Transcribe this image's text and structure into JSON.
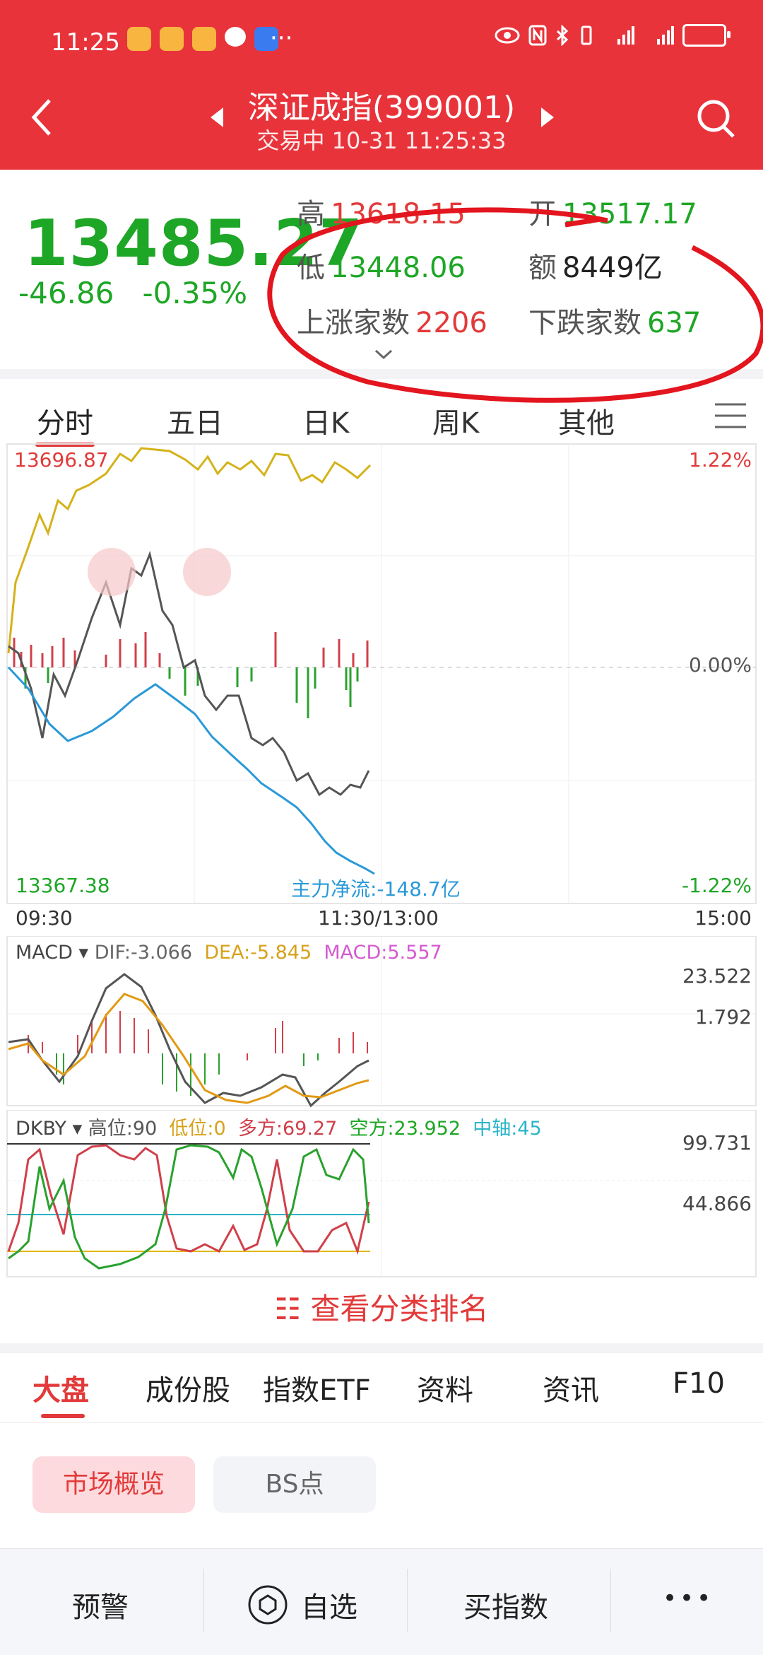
{
  "status_bar": {
    "time": "11:25",
    "dots": "···"
  },
  "header": {
    "title": "深证成指(399001)",
    "subtitle": "交易中   10-31 11:25:33"
  },
  "quote": {
    "price": "13485.27",
    "change": "-46.86",
    "change_pct": "-0.35%",
    "high_label": "高",
    "high": "13618.15",
    "open_label": "开",
    "open": "13517.17",
    "low_label": "低",
    "low": "13448.06",
    "amount_label": "额",
    "amount": "8449亿",
    "up_label": "上涨家数",
    "up": "2206",
    "down_label": "下跌家数",
    "down": "637"
  },
  "tabs": [
    "分时",
    "五日",
    "日K",
    "周K",
    "其他"
  ],
  "timeshare": {
    "top_price": "13696.87",
    "top_pct": "1.22%",
    "mid_pct": "0.00%",
    "bottom_price": "13367.38",
    "bottom_pct": "-1.22%",
    "flow": "主力净流:-148.7亿",
    "t_start": "09:30",
    "t_mid": "11:30/13:00",
    "t_end": "15:00"
  },
  "macd": {
    "name": "MACD",
    "dif": "DIF:-3.066",
    "dea": "DEA:-5.845",
    "macd": "MACD:5.557",
    "axis_top": "23.522",
    "axis_mid": "1.792"
  },
  "dkby": {
    "name": "DKBY",
    "high": "高位:90",
    "low": "低位:0",
    "long": "多方:69.27",
    "short": "空方:23.952",
    "axis_mid_label": "中轴:45",
    "axis_top": "99.731",
    "axis_mid": "44.866"
  },
  "rank_button": "查看分类排名",
  "bottom_tabs": [
    "大盘",
    "成份股",
    "指数ETF",
    "资料",
    "资讯",
    "F10"
  ],
  "pills": {
    "active": "市场概览",
    "inactive": "BS点"
  },
  "bottom_bar": {
    "alert": "预警",
    "watch": "自选",
    "buy": "买指数",
    "more": "•••"
  },
  "colors": {
    "brand": "#e8333b",
    "up": "#e23a3a",
    "down": "#1ea626"
  }
}
